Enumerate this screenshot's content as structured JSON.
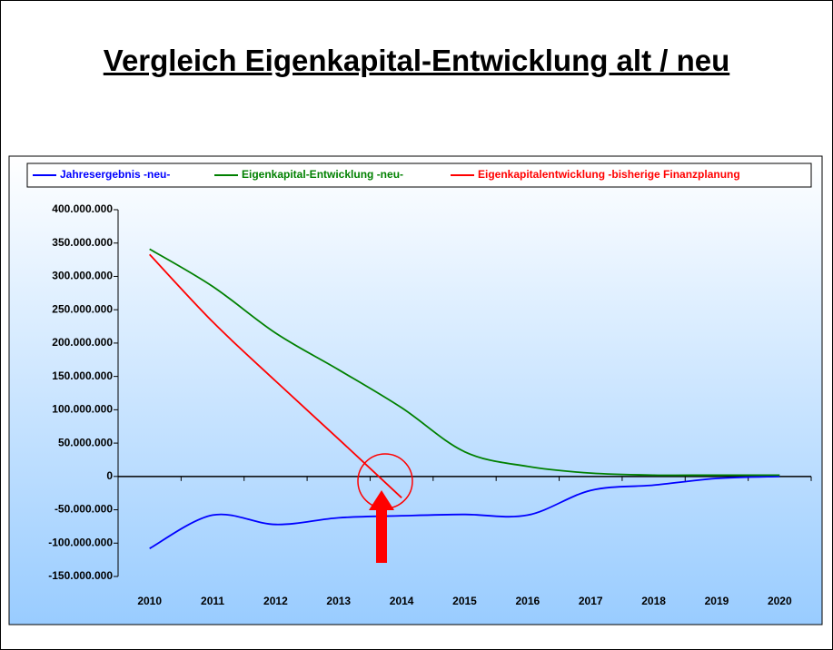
{
  "chart_data": {
    "type": "line",
    "title": "Vergleich Eigenkapital-Entwicklung alt / neu",
    "categories": [
      "2010",
      "2011",
      "2012",
      "2013",
      "2014",
      "2015",
      "2016",
      "2017",
      "2018",
      "2019",
      "2020"
    ],
    "series": [
      {
        "name": "Jahresergebnis -neu-",
        "color": "#0000ff",
        "values": [
          -108000000,
          -58000000,
          -72000000,
          -62000000,
          -59000000,
          -57000000,
          -58000000,
          -21000000,
          -13000000,
          -3000000,
          0
        ]
      },
      {
        "name": "Eigenkapital-Entwicklung -neu-",
        "color": "#008000",
        "values": [
          341000000,
          285000000,
          215000000,
          160000000,
          103000000,
          37000000,
          15000000,
          5000000,
          2000000,
          2000000,
          2000000
        ]
      },
      {
        "name": "Eigenkapitalentwicklung -bisherige Finanzplanung",
        "color": "#ff0000",
        "values": [
          333000000,
          232000000,
          143000000,
          56000000,
          -32000000,
          null,
          null,
          null,
          null,
          null,
          null
        ]
      }
    ],
    "ylim": [
      -150000000,
      400000000
    ],
    "yticks": [
      {
        "value": -150000000,
        "label": "-150.000.000"
      },
      {
        "value": -100000000,
        "label": "-100.000.000"
      },
      {
        "value": -50000000,
        "label": "-50.000.000"
      },
      0,
      {
        "value": 50000000,
        "label": "50.000.000"
      },
      {
        "value": 100000000,
        "label": "100.000.000"
      },
      {
        "value": 150000000,
        "label": "150.000.000"
      },
      {
        "value": 200000000,
        "label": "200.000.000"
      },
      {
        "value": 250000000,
        "label": "250.000.000"
      },
      {
        "value": 300000000,
        "label": "300.000.000"
      },
      {
        "value": 350000000,
        "label": "350.000.000"
      },
      {
        "value": 400000000,
        "label": "400.000.000"
      }
    ],
    "legend": "top"
  }
}
